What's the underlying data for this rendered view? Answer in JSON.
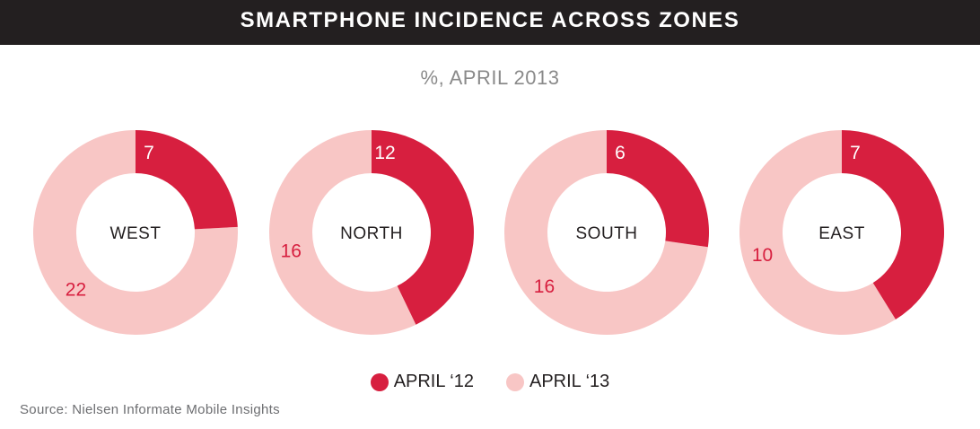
{
  "chart_data": {
    "type": "pie",
    "title": "SMARTPHONE INCIDENCE ACROSS ZONES",
    "subtitle": "%, APRIL 2013",
    "categories": [
      "WEST",
      "NORTH",
      "SOUTH",
      "EAST"
    ],
    "series": [
      {
        "name": "APRIL ‘12",
        "color": "#d71f3f",
        "values": [
          7,
          12,
          6,
          7
        ]
      },
      {
        "name": "APRIL ‘13",
        "color": "#f8c6c5",
        "values": [
          22,
          16,
          16,
          10
        ]
      }
    ],
    "legend_position": "bottom",
    "source": "Source: Nielsen Informate Mobile Insights"
  }
}
